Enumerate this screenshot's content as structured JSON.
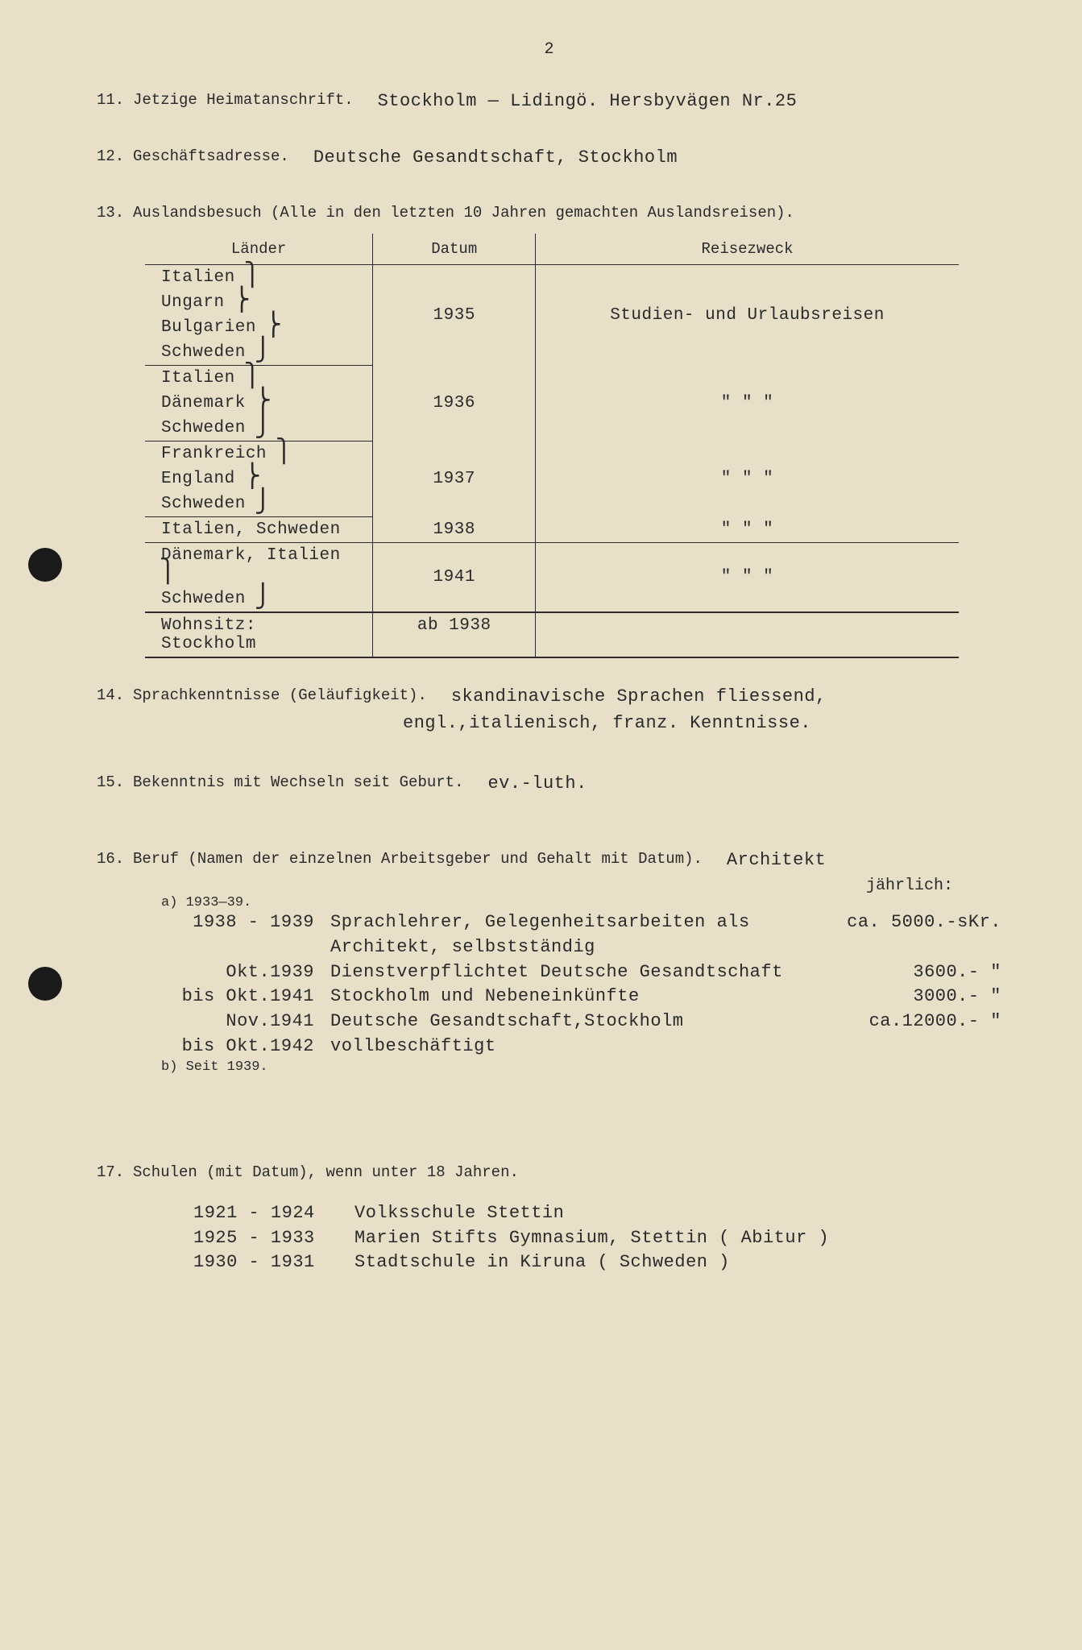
{
  "page_number": "2",
  "colors": {
    "paper": "#e8dfc8",
    "ink": "#2a2a2a",
    "punch": "#1a1a1a"
  },
  "fields": {
    "f11": {
      "num": "11.",
      "label": "Jetzige Heimatanschrift.",
      "value": "Stockholm — Lidingö. Hersbyvägen Nr.25"
    },
    "f12": {
      "num": "12.",
      "label": "Geschäftsadresse.",
      "value": "Deutsche Gesandtschaft, Stockholm"
    },
    "f13": {
      "num": "13.",
      "label": "Auslandsbesuch (Alle in den letzten 10 Jahren gemachten Auslandsreisen)."
    },
    "f14": {
      "num": "14.",
      "label": "Sprachkenntnisse (Geläufigkeit).",
      "value1": "skandinavische Sprachen fliessend,",
      "value2": "engl.,italienisch, franz. Kenntnisse."
    },
    "f15": {
      "num": "15.",
      "label": "Bekenntnis mit Wechseln seit Geburt.",
      "value": "ev.-luth."
    },
    "f16": {
      "num": "16.",
      "label": "Beruf (Namen der einzelnen Arbeitsgeber und Gehalt mit Datum).",
      "value": "Architekt",
      "yearly": "jährlich:"
    },
    "f17": {
      "num": "17.",
      "label": "Schulen (mit Datum), wenn unter 18 Jahren."
    }
  },
  "travel_table": {
    "headers": {
      "land": "Länder",
      "date": "Datum",
      "purpose": "Reisezweck"
    },
    "groups": [
      {
        "lands": [
          "Italien",
          "Ungarn",
          "Bulgarien",
          "Schweden"
        ],
        "date": "1935",
        "purpose": "Studien- und Urlaubsreisen"
      },
      {
        "lands": [
          "Italien",
          "Dänemark",
          "Schweden"
        ],
        "date": "1936",
        "purpose": "\"     \"     \""
      },
      {
        "lands": [
          "Frankreich",
          "England",
          "Schweden"
        ],
        "date": "1937",
        "purpose": "\"     \"     \""
      },
      {
        "lands": [
          "Italien, Schweden"
        ],
        "date": "1938",
        "purpose": "\"     \"     \""
      },
      {
        "lands": [
          "Dänemark, Italien",
          "Schweden"
        ],
        "date": "1941",
        "purpose": "\"     \"     \""
      }
    ],
    "footer": {
      "land": "Wohnsitz: Stockholm",
      "date": "ab 1938",
      "purpose": ""
    }
  },
  "employment": {
    "sub_a": "a)  1933—39.",
    "sub_b": "b)  Seit 1939.",
    "rows": [
      {
        "date": "1938 - 1939",
        "desc": "Sprachlehrer, Gelegenheitsarbeiten als Architekt, selbstständig",
        "amt": "ca. 5000.-sKr."
      },
      {
        "date": "Okt.1939\nbis Okt.1941",
        "desc": "Dienstverpflichtet Deutsche Gesandtschaft Stockholm und Nebeneinkünfte",
        "amt": "3600.- \"\n3000.- \""
      },
      {
        "date": "Nov.1941\nbis Okt.1942",
        "desc": "Deutsche Gesandtschaft,Stockholm vollbeschäftigt",
        "amt": "ca.12000.- \""
      }
    ]
  },
  "schools": [
    {
      "years": "1921 - 1924",
      "name": "Volksschule Stettin"
    },
    {
      "years": "1925 - 1933",
      "name": "Marien Stifts Gymnasium, Stettin ( Abitur )"
    },
    {
      "years": "1930 - 1931",
      "name": "Stadtschule in Kiruna ( Schweden )"
    }
  ]
}
